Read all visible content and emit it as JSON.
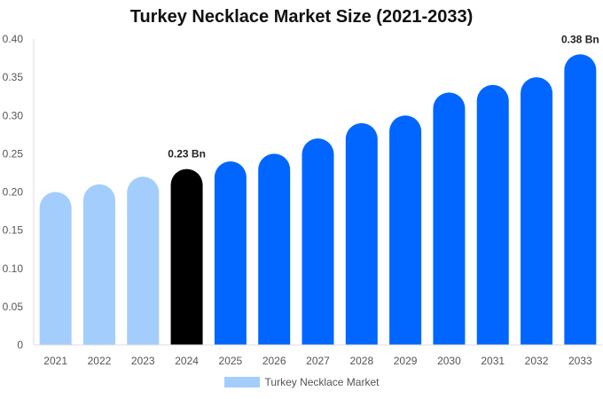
{
  "chart_data": {
    "type": "bar",
    "title": "Turkey Necklace Market Size (2021-2033)",
    "xlabel": "",
    "ylabel": "",
    "categories": [
      "2021",
      "2022",
      "2023",
      "2024",
      "2025",
      "2026",
      "2027",
      "2028",
      "2029",
      "2030",
      "2031",
      "2032",
      "2033"
    ],
    "series": [
      {
        "name": "Turkey Necklace Market",
        "values": [
          0.2,
          0.21,
          0.22,
          0.23,
          0.24,
          0.25,
          0.27,
          0.29,
          0.3,
          0.33,
          0.34,
          0.35,
          0.38
        ]
      }
    ],
    "ylim": [
      0,
      0.4
    ],
    "yticks": [
      "0",
      "0.05",
      "0.10",
      "0.15",
      "0.20",
      "0.25",
      "0.30",
      "0.35",
      "0.40"
    ],
    "data_labels": [
      {
        "category": "2024",
        "text": "0.23 Bn"
      },
      {
        "category": "2033",
        "text": "0.38 Bn"
      }
    ],
    "grid": false,
    "legend_position": "bottom",
    "colors": {
      "historical": "#a3cdfd",
      "base_year": "#000000",
      "forecast": "#0066ff"
    }
  }
}
